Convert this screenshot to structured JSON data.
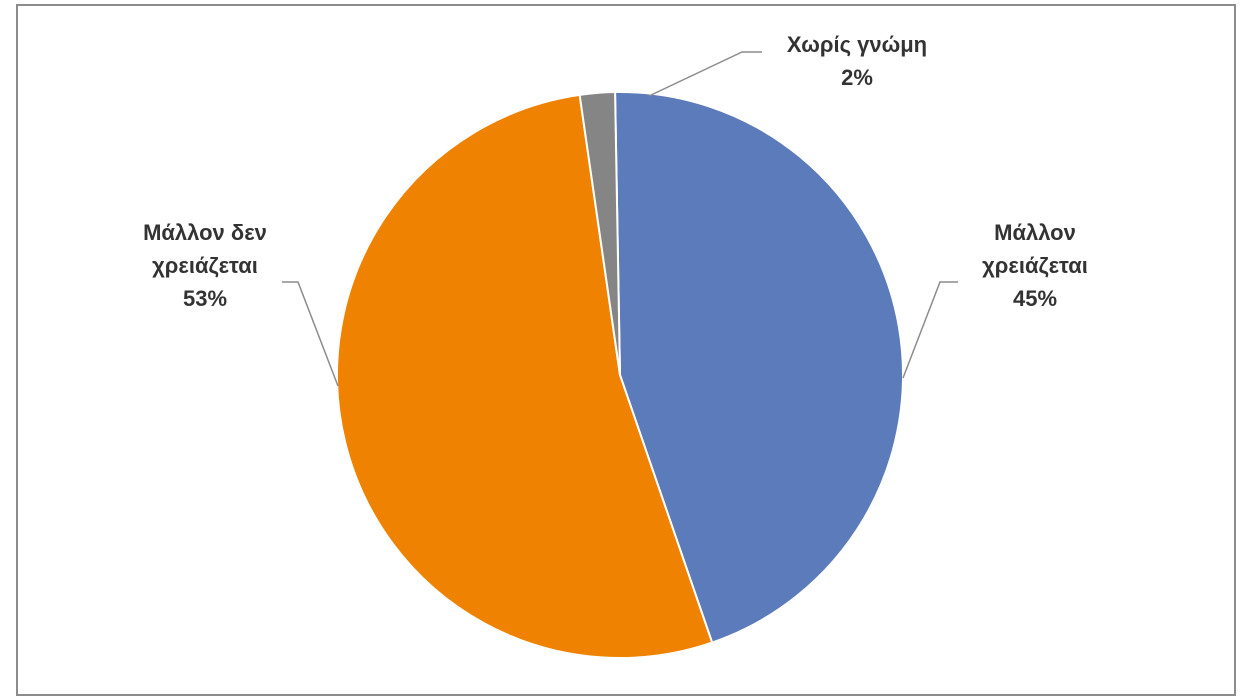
{
  "chart_data": {
    "type": "pie",
    "start_angle_deg": -1,
    "slices": [
      {
        "label_lines": [
          "Μάλλον",
          "χρειάζεται"
        ],
        "percent_label": "45%",
        "value": 45,
        "color": "#5b7bba"
      },
      {
        "label_lines": [
          "Μάλλον δεν",
          "χρειάζεται"
        ],
        "percent_label": "53%",
        "value": 53,
        "color": "#ef8200"
      },
      {
        "label_lines": [
          "Χωρίς γνώμη"
        ],
        "percent_label": "2%",
        "value": 2,
        "color": "#858585"
      }
    ],
    "legend": "none",
    "data_labels": "outside with leader lines"
  }
}
